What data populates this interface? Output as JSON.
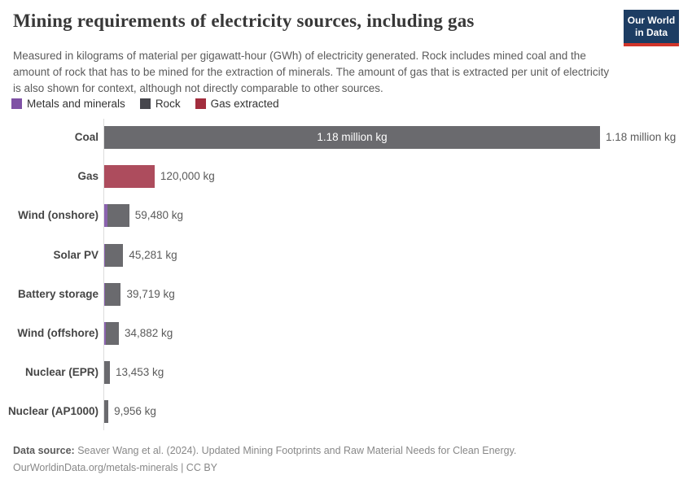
{
  "header": {
    "title": "Mining requirements of electricity sources, including gas",
    "subtitle": "Measured in kilograms of material per gigawatt-hour (GWh) of electricity generated. Rock includes mined coal and the amount of rock that has to be mined for the extraction of minerals. The amount of gas that is extracted per unit of electricity is also shown for context, although not directly comparable to other sources.",
    "logo": {
      "line1": "Our World",
      "line2": "in Data",
      "bg_color": "#1d3d63",
      "accent_color": "#d2352a"
    }
  },
  "legend": {
    "items": [
      {
        "label": "Metals and minerals",
        "color": "#7f51a5"
      },
      {
        "label": "Rock",
        "color": "#47474d"
      },
      {
        "label": "Gas extracted",
        "color": "#a22d3d"
      }
    ]
  },
  "chart_data": {
    "type": "bar",
    "orientation": "horizontal",
    "title": "Mining requirements of electricity sources, including gas",
    "unit": "kg per GWh",
    "xlim": [
      0,
      1180000
    ],
    "grid": false,
    "legend_position": "top",
    "categories": [
      "Coal",
      "Gas",
      "Wind (onshore)",
      "Solar PV",
      "Battery storage",
      "Wind (offshore)",
      "Nuclear (EPR)",
      "Nuclear (AP1000)"
    ],
    "series": [
      {
        "name": "Metals and minerals",
        "color": "#8a62ae",
        "values": [
          0,
          0,
          7000,
          2300,
          2700,
          3500,
          900,
          700
        ]
      },
      {
        "name": "Rock",
        "color": "#6a6a6e",
        "values": [
          1180000,
          0,
          52480,
          42981,
          37019,
          31382,
          12553,
          9256
        ]
      },
      {
        "name": "Gas extracted",
        "color": "#ad4c5d",
        "values": [
          0,
          120000,
          0,
          0,
          0,
          0,
          0,
          0
        ]
      }
    ],
    "totals": [
      1180000,
      120000,
      59480,
      45281,
      39719,
      34882,
      13453,
      9956
    ],
    "value_labels": [
      "1.18 million kg",
      "120,000 kg",
      "59,480 kg",
      "45,281 kg",
      "39,719 kg",
      "34,882 kg",
      "13,453 kg",
      "9,956 kg"
    ],
    "inside_labels": [
      "1.18 million kg",
      null,
      null,
      null,
      null,
      null,
      null,
      null
    ]
  },
  "footer": {
    "datasource_label": "Data source:",
    "datasource_text": "Seaver Wang et al. (2024). Updated Mining Footprints and Raw Material Needs for Clean Energy.",
    "citation_line": "OurWorldinData.org/metals-minerals | CC BY"
  }
}
